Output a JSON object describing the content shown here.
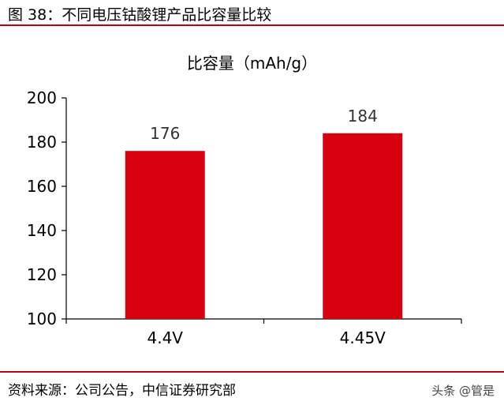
{
  "figure_title": "图 38：不同电压钴酸锂产品比容量比较",
  "source": "资料来源：公司公告，中信证券研究部",
  "watermark": "头条 @管是",
  "colors": {
    "bar": "#d7000f",
    "rule": "#c00018",
    "axis": "#000000"
  },
  "chart_data": {
    "type": "bar",
    "title": "比容量（mAh/g）",
    "categories": [
      "4.4V",
      "4.45V"
    ],
    "values": [
      176,
      184
    ],
    "data_labels": [
      "176",
      "184"
    ],
    "ylim": [
      100,
      200
    ],
    "yticks": [
      100,
      120,
      140,
      160,
      180,
      200
    ],
    "grid": false,
    "legend": "none"
  }
}
